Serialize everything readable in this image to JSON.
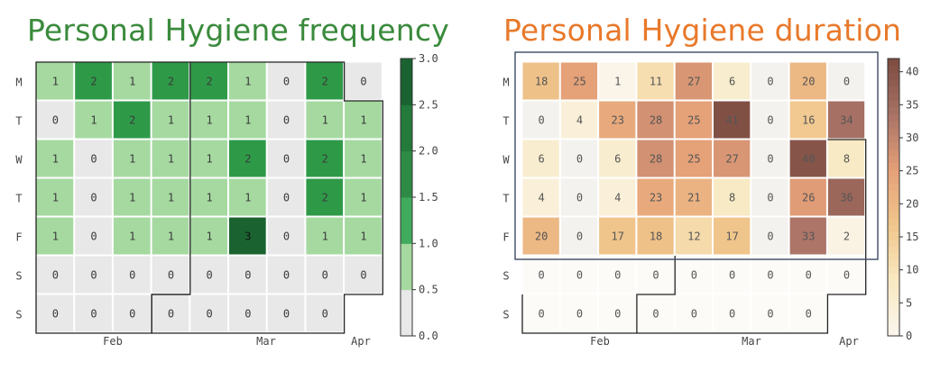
{
  "chart_data": [
    {
      "type": "heatmap",
      "title": "Personal Hygiene frequency",
      "title_color": "#3a8a3c",
      "row_labels": [
        "M",
        "T",
        "W",
        "T",
        "F",
        "S",
        "S"
      ],
      "column_labels": [
        "Feb",
        "Mar",
        "Apr"
      ],
      "values": [
        [
          1,
          2,
          1,
          2,
          2,
          1,
          0,
          2,
          0
        ],
        [
          0,
          1,
          2,
          1,
          1,
          1,
          0,
          1,
          1
        ],
        [
          1,
          0,
          1,
          1,
          1,
          2,
          0,
          2,
          1
        ],
        [
          1,
          0,
          1,
          1,
          1,
          1,
          0,
          2,
          1
        ],
        [
          1,
          0,
          1,
          1,
          1,
          3,
          0,
          1,
          1
        ],
        [
          0,
          0,
          0,
          0,
          0,
          0,
          0,
          0,
          0
        ],
        [
          0,
          0,
          0,
          0,
          0,
          0,
          0,
          0,
          null
        ]
      ],
      "colorbar": {
        "range": [
          0,
          3
        ],
        "ticks": [
          "0.0",
          "0.5",
          "1.0",
          "1.5",
          "2.0",
          "2.5",
          "3.0"
        ],
        "colors": [
          "#e8e8e8",
          "#a5d9a0",
          "#41ab5d",
          "#2e8b45",
          "#1a6330"
        ]
      }
    },
    {
      "type": "heatmap",
      "title": "Personal Hygiene duration",
      "title_color": "#e8792b",
      "row_labels": [
        "M",
        "T",
        "W",
        "T",
        "F",
        "S",
        "S"
      ],
      "column_labels": [
        "Feb",
        "Mar",
        "Apr"
      ],
      "values": [
        [
          18,
          25,
          1,
          11,
          27,
          6,
          0,
          20,
          0
        ],
        [
          0,
          4,
          23,
          28,
          25,
          41,
          0,
          16,
          34
        ],
        [
          6,
          0,
          6,
          28,
          25,
          27,
          0,
          40,
          8
        ],
        [
          4,
          0,
          4,
          23,
          21,
          8,
          0,
          26,
          36
        ],
        [
          20,
          0,
          17,
          18,
          12,
          17,
          0,
          33,
          2
        ],
        [
          0,
          0,
          0,
          0,
          0,
          0,
          0,
          0,
          0
        ],
        [
          0,
          0,
          0,
          0,
          0,
          0,
          0,
          0,
          null
        ]
      ],
      "colorbar": {
        "range": [
          0,
          42
        ],
        "ticks": [
          "0",
          "5",
          "10",
          "15",
          "20",
          "25",
          "30",
          "35",
          "40"
        ],
        "colors": [
          "#fbf6ee",
          "#f8e9c2",
          "#f0c68c",
          "#e5a078",
          "#a87266",
          "#7c4b40"
        ]
      }
    }
  ]
}
